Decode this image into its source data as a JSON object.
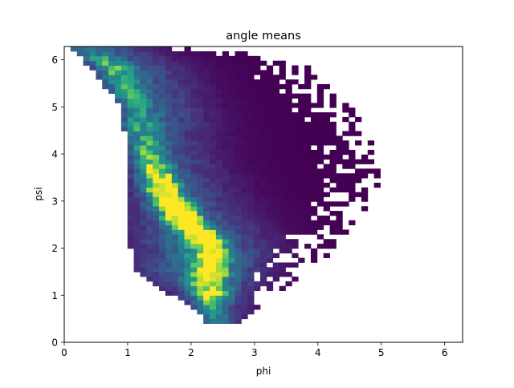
{
  "chart_data": {
    "type": "heatmap",
    "title": "angle means",
    "xlabel": "phi",
    "ylabel": "psi",
    "xlim": [
      0,
      6.283
    ],
    "ylim": [
      0,
      6.283
    ],
    "xticks": [
      0,
      1,
      2,
      3,
      4,
      5,
      6
    ],
    "yticks": [
      0,
      1,
      2,
      3,
      4,
      5,
      6
    ],
    "grid": false,
    "legend": "none",
    "colormap": "viridis",
    "bins": 63,
    "bin_width": 0.0997,
    "x_bin_range": [
      0,
      6.283
    ],
    "y_bin_range": [
      0,
      6.283
    ],
    "density_ridge": {
      "points": [
        [
          0.2,
          6.2
        ],
        [
          0.7,
          5.9
        ],
        [
          1.0,
          5.1
        ],
        [
          1.25,
          4.0
        ],
        [
          1.55,
          3.2
        ],
        [
          1.8,
          2.75
        ],
        [
          2.1,
          2.35
        ],
        [
          2.3,
          2.0
        ]
      ],
      "peak_location": [
        1.8,
        2.75
      ]
    },
    "occupied_region": {
      "phi_min_by_psi": [
        [
          0.5,
          2.2
        ],
        [
          1.0,
          1.7
        ],
        [
          1.5,
          1.1
        ],
        [
          2.5,
          1.0
        ],
        [
          4.0,
          1.0
        ],
        [
          5.0,
          0.9
        ],
        [
          5.5,
          0.6
        ],
        [
          6.0,
          0.3
        ],
        [
          6.28,
          0.1
        ]
      ],
      "phi_max_by_psi": [
        [
          0.5,
          2.8
        ],
        [
          1.0,
          3.3
        ],
        [
          1.5,
          3.9
        ],
        [
          2.5,
          4.6
        ],
        [
          3.5,
          5.0
        ],
        [
          4.5,
          4.8
        ],
        [
          5.5,
          4.2
        ],
        [
          6.0,
          3.8
        ],
        [
          6.28,
          2.2
        ]
      ],
      "psi_min": 0.4,
      "psi_max": 6.28
    }
  }
}
